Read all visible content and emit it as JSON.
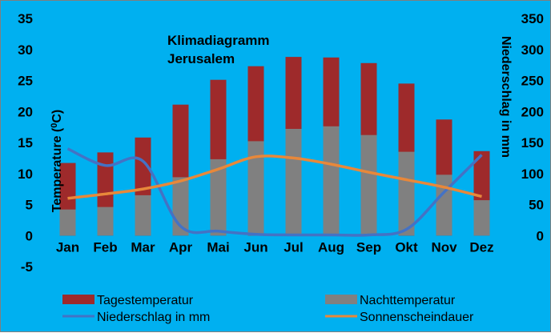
{
  "chart_data": {
    "type": "bar",
    "title_lines": [
      "Klimadiagramm",
      "Jerusalem"
    ],
    "categories": [
      "Jan",
      "Feb",
      "Mar",
      "Apr",
      "Mai",
      "Jun",
      "Jul",
      "Aug",
      "Sep",
      "Okt",
      "Nov",
      "Dez"
    ],
    "ylabel": "Temperature (⁰C)",
    "ylabel_parts": [
      "Temperature (",
      "0",
      "C)"
    ],
    "y2label": "Niederschlag in mm",
    "ylim": [
      -5,
      35
    ],
    "yticks": [
      -5,
      0,
      5,
      10,
      15,
      20,
      25,
      30,
      35
    ],
    "y2lim": [
      0,
      350
    ],
    "y2ticks": [
      0,
      50,
      100,
      150,
      200,
      250,
      300,
      350
    ],
    "bar_series": [
      {
        "name": "Tagestemperatur",
        "color": "#9e2a2b",
        "axis": "left",
        "values": [
          11.7,
          13.4,
          15.8,
          21.1,
          25.1,
          27.3,
          28.8,
          28.7,
          27.8,
          24.5,
          18.7,
          13.6
        ]
      },
      {
        "name": "Nachttemperatur",
        "color": "#808080",
        "axis": "left",
        "values": [
          4.2,
          4.6,
          6.5,
          9.4,
          12.3,
          15.2,
          17.2,
          17.6,
          16.2,
          13.5,
          9.8,
          5.7
        ]
      }
    ],
    "line_series": [
      {
        "name": "Niederschlag in mm",
        "color": "#4472c4",
        "axis": "right",
        "values": [
          140,
          113,
          120,
          15,
          7,
          2,
          1,
          1,
          1,
          10,
          70,
          130
        ]
      },
      {
        "name": "Sonnenscheindauer",
        "color": "#e8883a",
        "axis": "right",
        "values": [
          60,
          67,
          75,
          88,
          107,
          127,
          125,
          115,
          102,
          90,
          78,
          63
        ]
      }
    ],
    "legend_position": "bottom",
    "grid": false
  },
  "legend": {
    "tag": "Tagestemperatur",
    "nacht": "Nachttemperatur",
    "nieder": "Niederschlag in mm",
    "sonne": "Sonnenscheindauer"
  }
}
